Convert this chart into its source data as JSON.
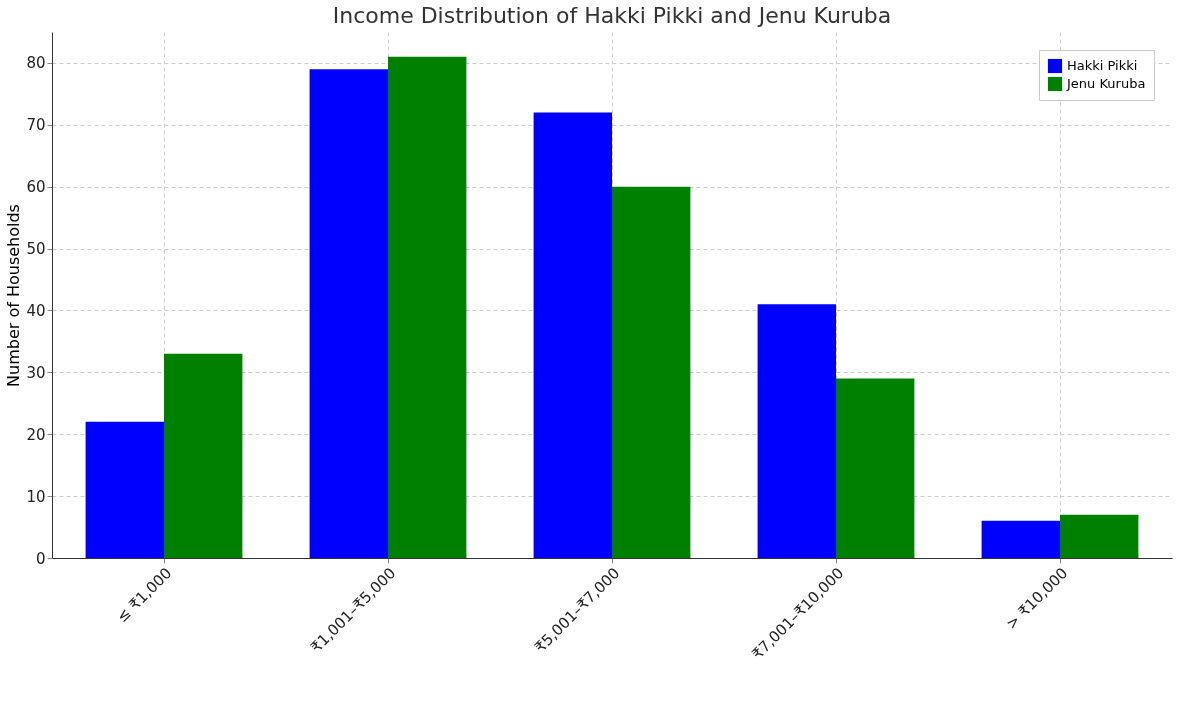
{
  "chart_data": {
    "type": "bar",
    "title": "Income Distribution of Hakki Pikki and Jenu Kuruba",
    "ylabel": "Number of Households",
    "categories": [
      "≤ ₹1,000",
      "₹1,001–₹5,000",
      "₹5,001–₹7,000",
      "₹7,001–₹10,000",
      "> ₹10,000"
    ],
    "series": [
      {
        "name": "Hakki Pikki",
        "color": "#0000ff",
        "values": [
          22,
          79,
          72,
          41,
          6
        ]
      },
      {
        "name": "Jenu Kuruba",
        "color": "#008000",
        "values": [
          33,
          81,
          60,
          29,
          7
        ]
      }
    ],
    "ylim": [
      0,
      85
    ],
    "yticks": [
      0,
      10,
      20,
      30,
      40,
      50,
      60,
      70,
      80
    ],
    "grid": true,
    "legend": "top right"
  }
}
